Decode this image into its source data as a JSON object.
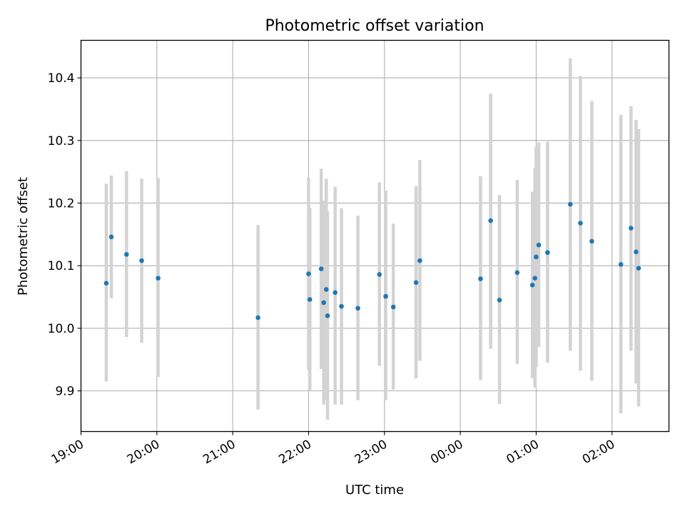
{
  "chart_data": {
    "type": "scatter",
    "title": "Photometric offset variation",
    "xlabel": "UTC time",
    "ylabel": "Photometric offset",
    "x_tick_labels": [
      "19:00",
      "20:00",
      "21:00",
      "22:00",
      "23:00",
      "00:00",
      "01:00",
      "02:00"
    ],
    "y_tick_labels": [
      "9.9",
      "10.0",
      "10.1",
      "10.2",
      "10.3",
      "10.4"
    ],
    "y_ticks": [
      9.9,
      10.0,
      10.1,
      10.2,
      10.3,
      10.4
    ],
    "xlim": [
      "19:00",
      "02:45"
    ],
    "ylim": [
      9.835,
      10.46
    ],
    "grid": true,
    "colors": {
      "points": "#1f77b4",
      "errorbars": "#d3d3d3",
      "grid": "#b0b0b0"
    },
    "points": [
      {
        "t": "19:20",
        "y": 10.072,
        "err_low": 9.915,
        "err_high": 10.231
      },
      {
        "t": "19:24",
        "y": 10.146,
        "err_low": 10.048,
        "err_high": 10.244
      },
      {
        "t": "19:36",
        "y": 10.118,
        "err_low": 9.986,
        "err_high": 10.251
      },
      {
        "t": "19:48",
        "y": 10.108,
        "err_low": 9.977,
        "err_high": 10.239
      },
      {
        "t": "20:01",
        "y": 10.08,
        "err_low": 9.922,
        "err_high": 10.24
      },
      {
        "t": "21:20",
        "y": 10.017,
        "err_low": 9.87,
        "err_high": 10.165
      },
      {
        "t": "22:00",
        "y": 10.087,
        "err_low": 9.933,
        "err_high": 10.241
      },
      {
        "t": "22:01",
        "y": 10.046,
        "err_low": 9.9,
        "err_high": 10.192
      },
      {
        "t": "22:10",
        "y": 10.095,
        "err_low": 9.935,
        "err_high": 10.255
      },
      {
        "t": "22:12",
        "y": 10.041,
        "err_low": 9.878,
        "err_high": 10.204
      },
      {
        "t": "22:14",
        "y": 10.062,
        "err_low": 9.885,
        "err_high": 10.239
      },
      {
        "t": "22:15",
        "y": 10.02,
        "err_low": 9.854,
        "err_high": 10.187
      },
      {
        "t": "22:21",
        "y": 10.057,
        "err_low": 9.878,
        "err_high": 10.226
      },
      {
        "t": "22:26",
        "y": 10.035,
        "err_low": 9.878,
        "err_high": 10.192
      },
      {
        "t": "22:39",
        "y": 10.032,
        "err_low": 9.885,
        "err_high": 10.18
      },
      {
        "t": "22:56",
        "y": 10.086,
        "err_low": 9.94,
        "err_high": 10.233
      },
      {
        "t": "23:01",
        "y": 10.051,
        "err_low": 9.885,
        "err_high": 10.22
      },
      {
        "t": "23:07",
        "y": 10.034,
        "err_low": 9.902,
        "err_high": 10.167
      },
      {
        "t": "23:25",
        "y": 10.073,
        "err_low": 9.92,
        "err_high": 10.227
      },
      {
        "t": "23:28",
        "y": 10.108,
        "err_low": 9.948,
        "err_high": 10.269
      },
      {
        "t": "00:16",
        "y": 10.079,
        "err_low": 9.917,
        "err_high": 10.243
      },
      {
        "t": "00:24",
        "y": 10.172,
        "err_low": 9.967,
        "err_high": 10.375
      },
      {
        "t": "00:31",
        "y": 10.045,
        "err_low": 9.879,
        "err_high": 10.213
      },
      {
        "t": "00:45",
        "y": 10.089,
        "err_low": 9.943,
        "err_high": 10.237
      },
      {
        "t": "00:57",
        "y": 10.069,
        "err_low": 9.92,
        "err_high": 10.218
      },
      {
        "t": "00:59",
        "y": 10.08,
        "err_low": 9.905,
        "err_high": 10.256
      },
      {
        "t": "01:00",
        "y": 10.114,
        "err_low": 9.938,
        "err_high": 10.29
      },
      {
        "t": "01:02",
        "y": 10.133,
        "err_low": 9.97,
        "err_high": 10.297
      },
      {
        "t": "01:09",
        "y": 10.121,
        "err_low": 9.945,
        "err_high": 10.298
      },
      {
        "t": "01:27",
        "y": 10.198,
        "err_low": 9.964,
        "err_high": 10.431
      },
      {
        "t": "01:35",
        "y": 10.168,
        "err_low": 9.932,
        "err_high": 10.403
      },
      {
        "t": "01:44",
        "y": 10.139,
        "err_low": 9.916,
        "err_high": 10.363
      },
      {
        "t": "02:07",
        "y": 10.102,
        "err_low": 9.864,
        "err_high": 10.341
      },
      {
        "t": "02:15",
        "y": 10.16,
        "err_low": 9.964,
        "err_high": 10.355
      },
      {
        "t": "02:19",
        "y": 10.122,
        "err_low": 9.912,
        "err_high": 10.333
      },
      {
        "t": "02:21",
        "y": 10.096,
        "err_low": 9.875,
        "err_high": 10.318
      }
    ]
  }
}
